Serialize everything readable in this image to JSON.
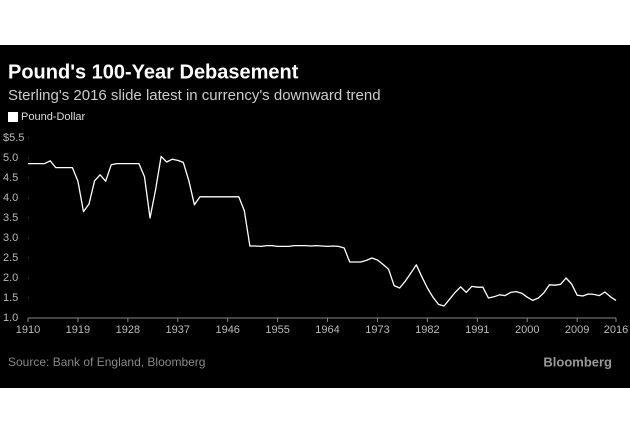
{
  "chart_data": {
    "type": "line",
    "title": "Pound's 100-Year Debasement",
    "subtitle": "Sterling's 2016 slide latest in currency's downward trend",
    "source": "Source: Bank of England, Bloomberg",
    "brand": "Bloomberg",
    "legend": "top-left",
    "grid": false,
    "x": [
      1910,
      1911,
      1912,
      1913,
      1914,
      1915,
      1916,
      1917,
      1918,
      1919,
      1920,
      1921,
      1922,
      1923,
      1924,
      1925,
      1926,
      1927,
      1928,
      1929,
      1930,
      1931,
      1932,
      1933,
      1934,
      1935,
      1936,
      1937,
      1938,
      1939,
      1940,
      1941,
      1942,
      1943,
      1944,
      1945,
      1946,
      1947,
      1948,
      1949,
      1950,
      1951,
      1952,
      1953,
      1954,
      1955,
      1956,
      1957,
      1958,
      1959,
      1960,
      1961,
      1962,
      1963,
      1964,
      1965,
      1966,
      1967,
      1968,
      1969,
      1970,
      1971,
      1972,
      1973,
      1974,
      1975,
      1976,
      1977,
      1978,
      1979,
      1980,
      1981,
      1982,
      1983,
      1984,
      1985,
      1986,
      1987,
      1988,
      1989,
      1990,
      1991,
      1992,
      1993,
      1994,
      1995,
      1996,
      1997,
      1998,
      1999,
      2000,
      2001,
      2002,
      2003,
      2004,
      2005,
      2006,
      2007,
      2008,
      2009,
      2010,
      2011,
      2012,
      2013,
      2014,
      2015,
      2016
    ],
    "series": [
      {
        "name": "Pound-Dollar",
        "color": "#ffffff",
        "values": [
          4.86,
          4.86,
          4.86,
          4.86,
          4.93,
          4.76,
          4.76,
          4.76,
          4.76,
          4.42,
          3.66,
          3.85,
          4.43,
          4.58,
          4.42,
          4.83,
          4.86,
          4.86,
          4.86,
          4.86,
          4.86,
          4.53,
          3.5,
          4.21,
          5.04,
          4.9,
          4.97,
          4.94,
          4.89,
          4.43,
          3.83,
          4.03,
          4.03,
          4.03,
          4.03,
          4.03,
          4.03,
          4.03,
          4.03,
          3.68,
          2.8,
          2.8,
          2.79,
          2.81,
          2.81,
          2.79,
          2.79,
          2.79,
          2.81,
          2.81,
          2.81,
          2.8,
          2.81,
          2.8,
          2.79,
          2.8,
          2.79,
          2.75,
          2.4,
          2.4,
          2.4,
          2.44,
          2.5,
          2.45,
          2.34,
          2.22,
          1.81,
          1.75,
          1.92,
          2.12,
          2.33,
          2.03,
          1.75,
          1.52,
          1.34,
          1.3,
          1.47,
          1.64,
          1.78,
          1.64,
          1.79,
          1.77,
          1.77,
          1.5,
          1.53,
          1.58,
          1.56,
          1.64,
          1.66,
          1.62,
          1.52,
          1.44,
          1.5,
          1.63,
          1.83,
          1.82,
          1.84,
          2.0,
          1.85,
          1.57,
          1.55,
          1.6,
          1.59,
          1.56,
          1.65,
          1.53,
          1.44
        ]
      }
    ],
    "xlim": [
      1910,
      2016
    ],
    "xticks": [
      1910,
      1919,
      1928,
      1937,
      1946,
      1955,
      1964,
      1973,
      1982,
      1991,
      2000,
      2009,
      2016
    ],
    "ylim": [
      1.0,
      5.5
    ],
    "yticks": [
      {
        "value": 1,
        "label": "1.0"
      },
      1.5,
      {
        "value": 2,
        "label": "2.0"
      },
      2.5,
      {
        "value": 3,
        "label": "3.0"
      },
      3.5,
      {
        "value": 4,
        "label": "4.0"
      },
      4.5,
      {
        "value": 5,
        "label": "5.0"
      },
      {
        "value": 5.5,
        "label": "$5.5"
      }
    ]
  }
}
